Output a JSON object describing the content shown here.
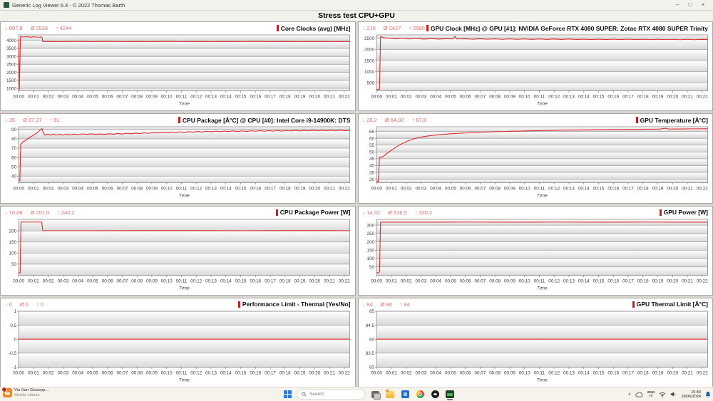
{
  "window": {
    "title": "Generic Log Viewer 6.4 - © 2022 Thomas Barth",
    "controls": {
      "minimize": "–",
      "maximize": "□",
      "close": "×"
    }
  },
  "header": {
    "title": "Stress test CPU+GPU"
  },
  "colors": {
    "line": "#dd2c2c",
    "stats_text": "#e06c6c",
    "title_marker": "#c81e1e",
    "grid_line": "#9c9c9c",
    "plot_border": "#8a8a8a",
    "band_top": "#ffffff",
    "band_bottom": "#d8d8d8",
    "tick_text": "#3c3c3c"
  },
  "stat_icons": {
    "min": "↓",
    "avg": "Ø",
    "max": "↑"
  },
  "time_axis": {
    "label": "Time",
    "tick_values": [
      0,
      1,
      2,
      3,
      4,
      5,
      6,
      7,
      8,
      9,
      10,
      11,
      12,
      13,
      14,
      15,
      16,
      17,
      18,
      19,
      20,
      21,
      22
    ],
    "tick_labels": [
      "00:00",
      "00:01",
      "00:02",
      "00:03",
      "00:04",
      "00:05",
      "00:06",
      "00:07",
      "00:08",
      "00:09",
      "00:10",
      "00:11",
      "00:12",
      "00:13",
      "00:14",
      "00:15",
      "00:16",
      "00:17",
      "00:18",
      "00:19",
      "00:20",
      "00:21",
      "00:22"
    ],
    "xlim": [
      0,
      22.37
    ]
  },
  "chart_data": [
    {
      "type": "line",
      "title": "Core Clocks (avg) [MHz]",
      "stats": {
        "min": "897,8",
        "avg": "3928",
        "max": "4244"
      },
      "ylim": [
        850,
        4350
      ],
      "yticks": [
        1000,
        1500,
        2000,
        2500,
        3000,
        3500,
        4000
      ],
      "ytick_labels": [
        "1000",
        "1500",
        "2000",
        "2500",
        "3000",
        "3500",
        "4000"
      ],
      "points": [
        [
          0,
          4150
        ],
        [
          0.05,
          897.8
        ],
        [
          0.12,
          4244
        ],
        [
          0.3,
          4215
        ],
        [
          0.55,
          4240
        ],
        [
          0.8,
          4210
        ],
        [
          1.05,
          4232
        ],
        [
          1.3,
          4205
        ],
        [
          1.5,
          4220
        ],
        [
          1.58,
          4200
        ],
        [
          1.63,
          3935
        ],
        [
          2,
          3930
        ],
        [
          3,
          3924
        ],
        [
          4,
          3933
        ],
        [
          5,
          3925
        ],
        [
          6,
          3932
        ],
        [
          7,
          3924
        ],
        [
          8,
          3931
        ],
        [
          9,
          3925
        ],
        [
          10,
          3932
        ],
        [
          11,
          3924
        ],
        [
          12,
          3931
        ],
        [
          13,
          3925
        ],
        [
          14,
          3931
        ],
        [
          15,
          3924
        ],
        [
          16,
          3932
        ],
        [
          17,
          3925
        ],
        [
          18,
          3931
        ],
        [
          19,
          3924
        ],
        [
          20,
          3931
        ],
        [
          21,
          3925
        ],
        [
          22.37,
          3929
        ]
      ]
    },
    {
      "type": "line",
      "title": "GPU Clock [MHz] @ GPU [#1]: NVIDIA GeForce RTX 4080 SUPER: Zotac RTX 4080 SUPER Trinity",
      "stats": {
        "min": "210",
        "avg": "2427",
        "max": "2580"
      },
      "ylim": [
        150,
        2650
      ],
      "yticks": [
        500,
        1000,
        1500,
        2000,
        2500
      ],
      "ytick_labels": [
        "500",
        "1000",
        "1500",
        "2000",
        "2500"
      ],
      "points": [
        [
          0,
          210
        ],
        [
          0.2,
          215
        ],
        [
          0.27,
          2580
        ],
        [
          0.5,
          2520
        ],
        [
          0.9,
          2500
        ],
        [
          1.3,
          2470
        ],
        [
          1.8,
          2502
        ],
        [
          2.2,
          2465
        ],
        [
          2.7,
          2492
        ],
        [
          3.2,
          2460
        ],
        [
          3.7,
          2486
        ],
        [
          4.2,
          2460
        ],
        [
          4.7,
          2480
        ],
        [
          5.15,
          2465
        ],
        [
          5.3,
          2580
        ],
        [
          5.42,
          2465
        ],
        [
          6,
          2476
        ],
        [
          6.5,
          2455
        ],
        [
          7,
          2476
        ],
        [
          7.5,
          2455
        ],
        [
          8,
          2470
        ],
        [
          8.5,
          2450
        ],
        [
          9,
          2470
        ],
        [
          9.5,
          2450
        ],
        [
          10,
          2466
        ],
        [
          10.5,
          2448
        ],
        [
          11,
          2466
        ],
        [
          11.5,
          2448
        ],
        [
          12,
          2462
        ],
        [
          12.5,
          2445
        ],
        [
          13,
          2462
        ],
        [
          13.5,
          2445
        ],
        [
          14,
          2458
        ],
        [
          14.5,
          2442
        ],
        [
          15,
          2458
        ],
        [
          15.5,
          2442
        ],
        [
          16,
          2455
        ],
        [
          16.5,
          2440
        ],
        [
          17,
          2455
        ],
        [
          17.5,
          2440
        ],
        [
          18,
          2452
        ],
        [
          18.5,
          2438
        ],
        [
          19,
          2452
        ],
        [
          19.5,
          2438
        ],
        [
          20,
          2450
        ],
        [
          20.5,
          2436
        ],
        [
          21,
          2450
        ],
        [
          21.5,
          2436
        ],
        [
          22,
          2448
        ],
        [
          22.37,
          2445
        ]
      ]
    },
    {
      "type": "line",
      "title": "CPU Package [Â°C] @ CPU [#0]: Intel Core i9-14900K: DTS",
      "stats": {
        "min": "35",
        "avg": "87,37",
        "max": "91"
      },
      "ylim": [
        33,
        93
      ],
      "yticks": [
        40,
        50,
        60,
        70,
        80,
        90
      ],
      "ytick_labels": [
        "40",
        "50",
        "60",
        "70",
        "80",
        "90"
      ],
      "points": [
        [
          0,
          36
        ],
        [
          0.08,
          35
        ],
        [
          0.14,
          74
        ],
        [
          0.3,
          77
        ],
        [
          0.45,
          78
        ],
        [
          0.6,
          80
        ],
        [
          0.8,
          82
        ],
        [
          1,
          84
        ],
        [
          1.2,
          86
        ],
        [
          1.35,
          88
        ],
        [
          1.5,
          90
        ],
        [
          1.58,
          91
        ],
        [
          1.68,
          86
        ],
        [
          1.78,
          84
        ],
        [
          1.95,
          85.2
        ],
        [
          2.15,
          84
        ],
        [
          2.35,
          85
        ],
        [
          2.55,
          84.2
        ],
        [
          2.75,
          84.8
        ],
        [
          3,
          84.1
        ],
        [
          3.25,
          85
        ],
        [
          3.5,
          84.3
        ],
        [
          3.75,
          85.1
        ],
        [
          4,
          84.5
        ],
        [
          4.3,
          85.3
        ],
        [
          4.6,
          84.8
        ],
        [
          4.9,
          85.4
        ],
        [
          5.2,
          84.8
        ],
        [
          5.5,
          85.2
        ],
        [
          5.8,
          84.8
        ],
        [
          6.1,
          85.5
        ],
        [
          6.4,
          85
        ],
        [
          6.7,
          85.8
        ],
        [
          7,
          85.2
        ],
        [
          7.3,
          86
        ],
        [
          7.6,
          85.5
        ],
        [
          7.9,
          86.2
        ],
        [
          8.2,
          85.8
        ],
        [
          8.5,
          86.5
        ],
        [
          8.8,
          86
        ],
        [
          9.1,
          87
        ],
        [
          9.4,
          86.3
        ],
        [
          9.7,
          87.2
        ],
        [
          10,
          86.6
        ],
        [
          10.3,
          87.4
        ],
        [
          10.6,
          86.8
        ],
        [
          10.9,
          87.5
        ],
        [
          11.2,
          87
        ],
        [
          11.5,
          87.7
        ],
        [
          11.8,
          87.2
        ],
        [
          12.1,
          88
        ],
        [
          12.4,
          87.4
        ],
        [
          12.7,
          88.2
        ],
        [
          13,
          87.6
        ],
        [
          13.3,
          88.3
        ],
        [
          13.6,
          87.8
        ],
        [
          13.9,
          88.4
        ],
        [
          14.2,
          87.9
        ],
        [
          14.5,
          88.5
        ],
        [
          14.8,
          88
        ],
        [
          15.1,
          88.6
        ],
        [
          15.4,
          88
        ],
        [
          15.7,
          88.7
        ],
        [
          16,
          88.2
        ],
        [
          16.3,
          88.8
        ],
        [
          16.6,
          88.2
        ],
        [
          16.9,
          88.8
        ],
        [
          17.2,
          88.3
        ],
        [
          17.5,
          89
        ],
        [
          17.8,
          88.4
        ],
        [
          18.1,
          89
        ],
        [
          18.4,
          88.5
        ],
        [
          18.7,
          89.1
        ],
        [
          19,
          88.5
        ],
        [
          19.3,
          89.1
        ],
        [
          19.6,
          88.6
        ],
        [
          19.9,
          89.2
        ],
        [
          20.2,
          88.6
        ],
        [
          20.5,
          89.2
        ],
        [
          20.8,
          88.7
        ],
        [
          21.1,
          89.3
        ],
        [
          21.4,
          88.7
        ],
        [
          21.7,
          89.3
        ],
        [
          22,
          88.8
        ],
        [
          22.37,
          89
        ]
      ]
    },
    {
      "type": "line",
      "title": "GPU Temperature [Â°C]",
      "stats": {
        "min": "28,2",
        "avg": "64,02",
        "max": "67,8"
      },
      "ylim": [
        27.5,
        68.5
      ],
      "yticks": [
        30,
        35,
        40,
        45,
        50,
        55,
        60,
        65
      ],
      "ytick_labels": [
        "30",
        "35",
        "40",
        "45",
        "50",
        "55",
        "60",
        "65"
      ],
      "points": [
        [
          0,
          28.8
        ],
        [
          0.12,
          28.2
        ],
        [
          0.2,
          46
        ],
        [
          0.4,
          46.5
        ],
        [
          0.55,
          47.5
        ],
        [
          0.7,
          49
        ],
        [
          0.9,
          50.5
        ],
        [
          1.1,
          52
        ],
        [
          1.35,
          53.8
        ],
        [
          1.6,
          55.4
        ],
        [
          1.85,
          56.8
        ],
        [
          2.1,
          58
        ],
        [
          2.35,
          59
        ],
        [
          2.6,
          59.9
        ],
        [
          2.9,
          60.7
        ],
        [
          3.2,
          61.3
        ],
        [
          3.5,
          61.8
        ],
        [
          3.9,
          62.3
        ],
        [
          4.3,
          62.8
        ],
        [
          4.7,
          63.1
        ],
        [
          5.1,
          63.4
        ],
        [
          5.6,
          63.8
        ],
        [
          6.1,
          64
        ],
        [
          6.6,
          64.3
        ],
        [
          7.1,
          64.5
        ],
        [
          7.6,
          64.7
        ],
        [
          8.1,
          64.9
        ],
        [
          8.6,
          65
        ],
        [
          9.1,
          65.2
        ],
        [
          9.6,
          65.3
        ],
        [
          10.1,
          65.5
        ],
        [
          10.6,
          65.6
        ],
        [
          11.1,
          65.7
        ],
        [
          11.6,
          65.8
        ],
        [
          12.1,
          65.9
        ],
        [
          12.6,
          66
        ],
        [
          13.1,
          66.1
        ],
        [
          13.6,
          66.1
        ],
        [
          14.1,
          66.2
        ],
        [
          14.6,
          66.3
        ],
        [
          15.1,
          66.3
        ],
        [
          15.6,
          66.4
        ],
        [
          16.1,
          66.5
        ],
        [
          16.6,
          66.5
        ],
        [
          17.1,
          66.6
        ],
        [
          17.6,
          66.6
        ],
        [
          18.1,
          66.7
        ],
        [
          18.6,
          66.7
        ],
        [
          19.1,
          66.8
        ],
        [
          19.55,
          67.4
        ],
        [
          19.75,
          66.8
        ],
        [
          20.1,
          66.9
        ],
        [
          20.6,
          66.9
        ],
        [
          21.1,
          67
        ],
        [
          21.6,
          67
        ],
        [
          22.37,
          67.1
        ]
      ]
    },
    {
      "type": "line",
      "title": "CPU Package Power [W]",
      "stats": {
        "min": "10,06",
        "avg": "201,0",
        "max": "240,2"
      },
      "ylim": [
        0,
        252
      ],
      "yticks": [
        50,
        100,
        150,
        200
      ],
      "ytick_labels": [
        "50",
        "100",
        "150",
        "200"
      ],
      "points": [
        [
          0,
          12
        ],
        [
          0.1,
          10.06
        ],
        [
          0.16,
          240.2
        ],
        [
          1.56,
          240
        ],
        [
          1.63,
          201
        ],
        [
          5,
          201
        ],
        [
          10,
          201.5
        ],
        [
          15,
          201
        ],
        [
          20,
          201.5
        ],
        [
          22.37,
          201
        ]
      ]
    },
    {
      "type": "line",
      "title": "GPU Power [W]",
      "stats": {
        "min": "14,32",
        "avg": "316,5",
        "max": "320,2"
      },
      "ylim": [
        0,
        335
      ],
      "yticks": [
        50,
        100,
        150,
        200,
        250,
        300
      ],
      "ytick_labels": [
        "50",
        "100",
        "150",
        "200",
        "250",
        "300"
      ],
      "points": [
        [
          0,
          16
        ],
        [
          0.14,
          14.32
        ],
        [
          0.2,
          20
        ],
        [
          0.27,
          318
        ],
        [
          3,
          318
        ],
        [
          6,
          319
        ],
        [
          9,
          318
        ],
        [
          12,
          319
        ],
        [
          15,
          318
        ],
        [
          18,
          319
        ],
        [
          21,
          318
        ],
        [
          22.37,
          318
        ]
      ]
    },
    {
      "type": "line",
      "title": "Performance Limit - Thermal [Yes/No]",
      "stats": {
        "min": "0",
        "avg": "0",
        "max": "0"
      },
      "ylim": [
        -1,
        1
      ],
      "yticks": [
        -1,
        -0.5,
        0,
        0.5,
        1
      ],
      "ytick_labels": [
        "-1",
        "-0,5",
        "0",
        "0,5",
        "1"
      ],
      "points": [
        [
          0,
          0
        ],
        [
          22.37,
          0
        ]
      ]
    },
    {
      "type": "line",
      "title": "GPU Thermal Limit [Â°C]",
      "stats": {
        "min": "84",
        "avg": "84",
        "max": "84"
      },
      "ylim": [
        83,
        85
      ],
      "yticks": [
        83,
        83.5,
        84,
        84.5,
        85
      ],
      "ytick_labels": [
        "83",
        "83,5",
        "84",
        "84,5",
        "85"
      ],
      "points": [
        [
          0,
          84
        ],
        [
          22.37,
          84
        ]
      ]
    }
  ],
  "taskbar": {
    "widget": {
      "title": "Via San Giusepp...",
      "subtitle": "Strada chiusa"
    },
    "search": {
      "placeholder": "Search"
    },
    "tray": {
      "hidden_icons_glyph": "∧",
      "language_line1": "ENG",
      "language_line2": "IT",
      "time": "15:43",
      "date": "18/06/2024"
    }
  }
}
